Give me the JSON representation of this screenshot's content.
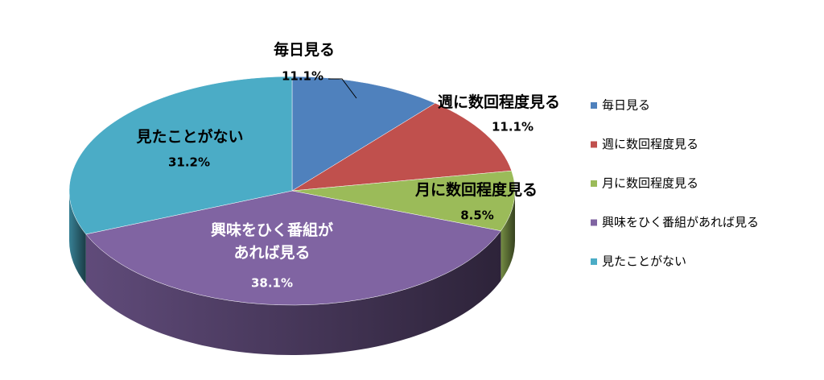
{
  "chart_data": {
    "type": "pie3d",
    "categories": [
      "毎日見る",
      "週に数回程度見る",
      "月に数回程度見る",
      "興味をひく番組があれば見る",
      "見たことがない"
    ],
    "values": [
      11.1,
      11.1,
      8.5,
      38.1,
      31.2
    ],
    "value_labels": [
      "11.1%",
      "11.1%",
      "8.5%",
      "38.1%",
      "31.2%"
    ],
    "colors": [
      "#4f81bd",
      "#c0504d",
      "#9bbb59",
      "#8064a2",
      "#4bacc6"
    ],
    "legend": "right"
  }
}
